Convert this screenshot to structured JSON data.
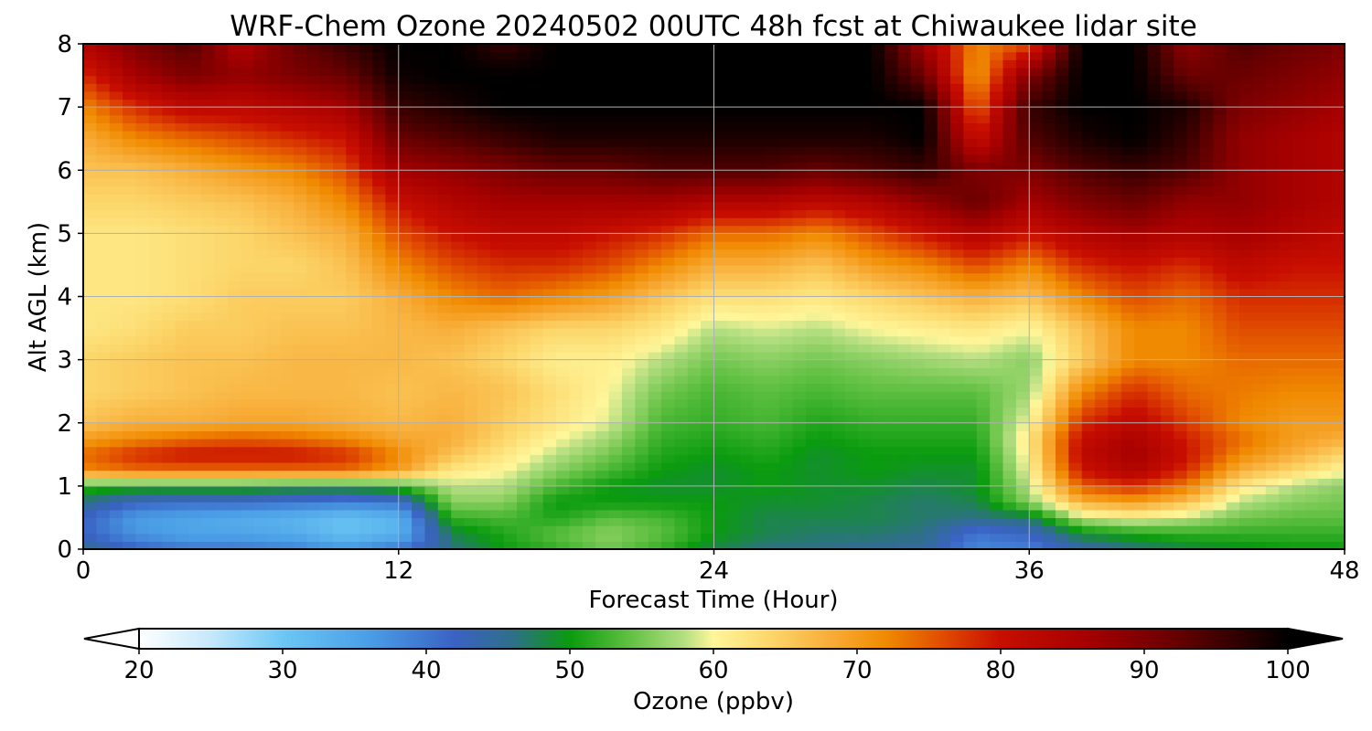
{
  "chart_data": {
    "type": "heatmap",
    "title": "WRF-Chem Ozone  20240502 00UTC 48h fcst at Chiwaukee lidar site",
    "xlabel": "Forecast Time (Hour)",
    "ylabel": "Alt AGL (km)",
    "xlim": [
      0,
      48
    ],
    "ylim": [
      0,
      8
    ],
    "xticks": [
      "0",
      "12",
      "24",
      "36",
      "48"
    ],
    "yticks": [
      "0",
      "1",
      "2",
      "3",
      "4",
      "5",
      "6",
      "7",
      "8"
    ],
    "grid": true,
    "x_hours": [
      0,
      2,
      4,
      6,
      8,
      10,
      12,
      14,
      16,
      18,
      20,
      22,
      24,
      26,
      28,
      30,
      32,
      34,
      36,
      38,
      40,
      42,
      44,
      46,
      48
    ],
    "z_km": [
      0,
      0.25,
      0.5,
      0.75,
      1.0,
      1.25,
      1.5,
      1.75,
      2.0,
      2.5,
      3.0,
      3.5,
      4.0,
      4.5,
      5.0,
      5.5,
      6.0,
      6.5,
      7.0,
      7.5,
      8.0
    ],
    "ozone_ppbv_by_hour": [
      [
        46,
        42,
        42,
        46,
        52,
        72,
        74,
        70,
        66,
        64,
        64,
        62,
        62,
        62,
        62,
        64,
        66,
        68,
        72,
        78,
        84
      ],
      [
        42,
        37,
        36,
        42,
        51,
        74,
        78,
        72,
        68,
        65,
        65,
        63,
        62,
        62,
        62,
        64,
        66,
        72,
        78,
        86,
        90
      ],
      [
        40,
        35,
        35,
        41,
        51,
        74,
        80,
        74,
        68,
        66,
        66,
        65,
        63,
        63,
        63,
        65,
        68,
        74,
        82,
        90,
        94
      ],
      [
        40,
        35,
        34,
        41,
        51,
        74,
        80,
        75,
        69,
        67,
        66,
        65,
        65,
        64,
        64,
        66,
        70,
        76,
        82,
        88,
        84
      ],
      [
        39,
        34,
        33,
        40,
        50,
        74,
        80,
        74,
        69,
        67,
        67,
        66,
        65,
        64,
        66,
        68,
        72,
        78,
        84,
        90,
        92
      ],
      [
        37,
        31,
        31,
        39,
        50,
        74,
        78,
        72,
        68,
        67,
        67,
        66,
        65,
        66,
        68,
        72,
        76,
        80,
        86,
        92,
        96
      ],
      [
        40,
        33,
        33,
        40,
        52,
        70,
        72,
        69,
        67,
        66,
        67,
        67,
        68,
        72,
        76,
        80,
        86,
        92,
        96,
        99,
        100
      ],
      [
        46,
        48,
        52,
        56,
        58,
        62,
        66,
        68,
        68,
        67,
        66,
        68,
        72,
        76,
        80,
        84,
        88,
        94,
        98,
        100,
        100
      ],
      [
        50,
        51,
        53,
        56,
        58,
        60,
        62,
        64,
        65,
        66,
        64,
        66,
        74,
        78,
        82,
        86,
        90,
        96,
        100,
        100,
        96
      ],
      [
        52,
        54,
        51,
        50,
        53,
        56,
        58,
        60,
        62,
        63,
        61,
        64,
        72,
        78,
        82,
        86,
        92,
        98,
        100,
        100,
        100
      ],
      [
        55,
        56,
        54,
        50,
        50,
        53,
        55,
        57,
        59,
        60,
        61,
        64,
        70,
        76,
        80,
        86,
        92,
        98,
        100,
        100,
        100
      ],
      [
        52,
        54,
        53,
        50,
        49,
        50,
        51,
        52,
        53,
        55,
        58,
        62,
        66,
        72,
        78,
        86,
        94,
        98,
        100,
        100,
        100
      ],
      [
        48,
        50,
        50,
        50,
        49,
        49,
        50,
        51,
        52,
        53,
        55,
        58,
        63,
        68,
        74,
        84,
        94,
        98,
        100,
        100,
        100
      ],
      [
        46,
        48,
        48,
        49,
        50,
        50,
        51,
        52,
        53,
        54,
        56,
        59,
        63,
        68,
        74,
        84,
        94,
        98,
        100,
        100,
        100
      ],
      [
        46,
        47,
        48,
        49,
        49,
        49,
        49,
        50,
        51,
        53,
        55,
        58,
        62,
        66,
        72,
        82,
        92,
        98,
        100,
        100,
        100
      ],
      [
        45,
        47,
        48,
        48,
        49,
        50,
        50,
        51,
        52,
        54,
        56,
        60,
        64,
        70,
        76,
        84,
        94,
        98,
        100,
        100,
        100
      ],
      [
        45,
        46,
        47,
        47,
        48,
        49,
        50,
        51,
        52,
        54,
        57,
        61,
        66,
        72,
        80,
        88,
        96,
        100,
        100,
        92,
        86
      ],
      [
        38,
        40,
        46,
        48,
        49,
        49,
        50,
        51,
        52,
        54,
        58,
        62,
        68,
        76,
        84,
        92,
        90,
        80,
        74,
        70,
        72
      ],
      [
        39,
        42,
        47,
        56,
        58,
        60,
        61,
        62,
        60,
        57,
        56,
        60,
        66,
        72,
        80,
        86,
        90,
        94,
        96,
        90,
        76
      ],
      [
        44,
        49,
        58,
        68,
        75,
        80,
        82,
        81,
        78,
        72,
        65,
        66,
        72,
        78,
        84,
        90,
        94,
        98,
        100,
        100,
        100
      ],
      [
        46,
        51,
        60,
        70,
        78,
        84,
        86,
        85,
        82,
        78,
        72,
        72,
        76,
        80,
        86,
        92,
        96,
        100,
        100,
        100,
        100
      ],
      [
        48,
        52,
        58,
        66,
        73,
        78,
        80,
        79,
        77,
        74,
        72,
        72,
        74,
        78,
        84,
        88,
        94,
        96,
        98,
        92,
        88
      ],
      [
        49,
        52,
        55,
        58,
        62,
        68,
        72,
        74,
        72,
        73,
        74,
        76,
        78,
        82,
        86,
        88,
        88,
        88,
        90,
        92,
        94
      ],
      [
        50,
        52,
        54,
        56,
        58,
        64,
        68,
        70,
        70,
        72,
        74,
        76,
        78,
        80,
        84,
        86,
        86,
        86,
        88,
        90,
        92
      ],
      [
        50,
        52,
        54,
        55,
        56,
        60,
        64,
        68,
        70,
        72,
        74,
        76,
        78,
        80,
        82,
        84,
        84,
        84,
        86,
        88,
        90
      ]
    ],
    "colorbar": {
      "label": "Ozone  (ppbv)",
      "range": [
        20,
        100
      ],
      "tick_labels": [
        "20",
        "30",
        "40",
        "50",
        "60",
        "70",
        "80",
        "90",
        "100"
      ],
      "extend": "both",
      "stops": [
        {
          "value": 20,
          "color": "#ffffff"
        },
        {
          "value": 25,
          "color": "#c6e8fb"
        },
        {
          "value": 30,
          "color": "#6cc7f4"
        },
        {
          "value": 36,
          "color": "#4a9ee6"
        },
        {
          "value": 42,
          "color": "#3a62c4"
        },
        {
          "value": 46,
          "color": "#2f6f8a"
        },
        {
          "value": 50,
          "color": "#0a9b0e"
        },
        {
          "value": 54,
          "color": "#5dbf40"
        },
        {
          "value": 58,
          "color": "#b6df82"
        },
        {
          "value": 60,
          "color": "#fff69a"
        },
        {
          "value": 64,
          "color": "#fcd66a"
        },
        {
          "value": 68,
          "color": "#f8ae3a"
        },
        {
          "value": 72,
          "color": "#f08a00"
        },
        {
          "value": 76,
          "color": "#e04b00"
        },
        {
          "value": 80,
          "color": "#c80e00"
        },
        {
          "value": 86,
          "color": "#a60000"
        },
        {
          "value": 92,
          "color": "#6a0000"
        },
        {
          "value": 97,
          "color": "#2a0000"
        },
        {
          "value": 100,
          "color": "#000000"
        }
      ]
    }
  }
}
